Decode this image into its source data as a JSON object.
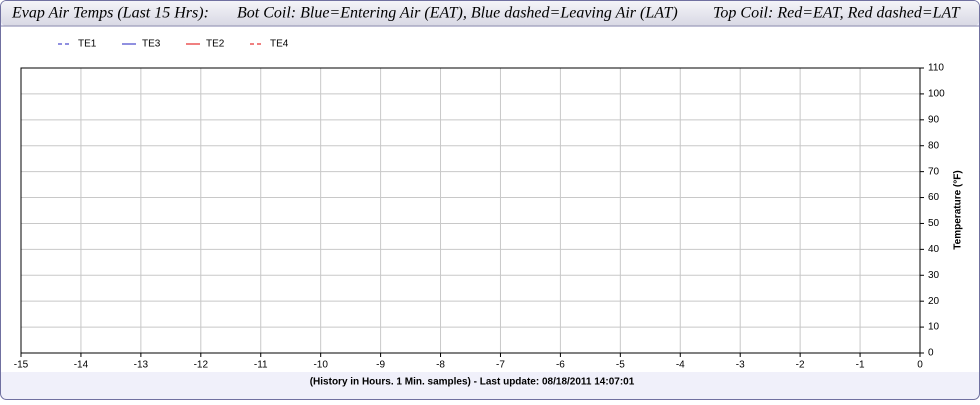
{
  "chart_data": {
    "type": "line",
    "title_parts": [
      "Evap Air Temps (Last 15 Hrs):",
      "Bot Coil: Blue=Entering Air (EAT), Blue dashed=Leaving Air (LAT)",
      "Top Coil: Red=EAT, Red dashed=LAT"
    ],
    "x_label": "(History in Hours. 1 Min. samples) - Last update: 08/18/2011 14:07:01",
    "y_label": "Temperature (°F)",
    "x": [],
    "series": [
      {
        "name": "TE1",
        "color": "#2020c0",
        "dashed": true,
        "values": []
      },
      {
        "name": "TE3",
        "color": "#2020c0",
        "dashed": false,
        "values": []
      },
      {
        "name": "TE2",
        "color": "#e00000",
        "dashed": false,
        "values": []
      },
      {
        "name": "TE4",
        "color": "#e00000",
        "dashed": true,
        "values": []
      }
    ],
    "xlim": [
      -15,
      0
    ],
    "xticks": [
      -15,
      -14,
      -13,
      -12,
      -11,
      -10,
      -9,
      -8,
      -7,
      -6,
      -5,
      -4,
      -3,
      -2,
      -1,
      0
    ],
    "ylim": [
      0,
      110
    ],
    "yticks": [
      0,
      10,
      20,
      30,
      40,
      50,
      60,
      70,
      80,
      90,
      100,
      110
    ],
    "y_axis_side": "right",
    "grid": true
  }
}
